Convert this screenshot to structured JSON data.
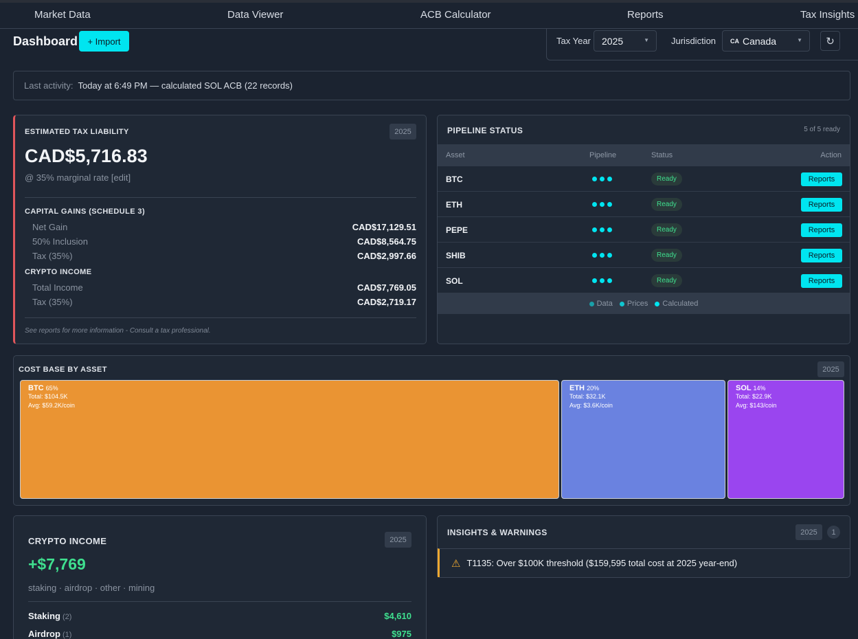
{
  "nav": [
    "Market Data",
    "Data Viewer",
    "ACB Calculator",
    "Reports",
    "Tax Insights"
  ],
  "header": {
    "title": "Dashboard",
    "import_label": "+ Import",
    "tax_year_label": "Tax Year",
    "tax_year_value": "2025",
    "jurisdiction_label": "Jurisdiction",
    "jurisdiction_flag": "CA",
    "jurisdiction_value": "Canada",
    "refresh_icon": "refresh-icon"
  },
  "activity": {
    "label": "Last activity:",
    "text": "Today at 6:49 PM — calculated SOL ACB (22 records)"
  },
  "tax": {
    "title": "Estimated Tax Liability",
    "year": "2025",
    "amount": "CAD$5,716.83",
    "rate_note": "@ 35% marginal rate [edit]",
    "capital_title": "Capital Gains (Schedule 3)",
    "capital_rows": [
      {
        "label": "Net Gain",
        "value": "CAD$17,129.51"
      },
      {
        "label": "50% Inclusion",
        "value": "CAD$8,564.75"
      },
      {
        "label": "Tax (35%)",
        "value": "CAD$2,997.66"
      }
    ],
    "income_title": "Crypto Income",
    "income_rows": [
      {
        "label": "Total Income",
        "value": "CAD$7,769.05"
      },
      {
        "label": "Tax (35%)",
        "value": "CAD$2,719.17"
      }
    ],
    "footnote": "See reports for more information - Consult a tax professional.",
    "accent": "#e0565b"
  },
  "pipeline": {
    "title": "Pipeline Status",
    "count": "5 of 5 ready",
    "columns": [
      "Asset",
      "Pipeline",
      "Status",
      "Action"
    ],
    "rows": [
      {
        "asset": "BTC",
        "status": "Ready",
        "action": "Reports"
      },
      {
        "asset": "ETH",
        "status": "Ready",
        "action": "Reports"
      },
      {
        "asset": "PEPE",
        "status": "Ready",
        "action": "Reports"
      },
      {
        "asset": "SHIB",
        "status": "Ready",
        "action": "Reports"
      },
      {
        "asset": "SOL",
        "status": "Ready",
        "action": "Reports"
      }
    ],
    "legend": [
      {
        "label": "Data",
        "color": "#1a9fa8"
      },
      {
        "label": "Prices",
        "color": "#10c6d0"
      },
      {
        "label": "Calculated",
        "color": "#00e5f0"
      }
    ]
  },
  "cost_base": {
    "title": "Cost Base by Asset",
    "year": "2025",
    "assets": [
      {
        "name": "BTC",
        "pct": "65%",
        "total": "Total: $104.5K",
        "avg": "Avg: $59.2K/coin",
        "color": "#ea9433"
      },
      {
        "name": "ETH",
        "pct": "20%",
        "total": "Total: $32.1K",
        "avg": "Avg: $3.6K/coin",
        "color": "#6a82e0"
      },
      {
        "name": "SOL",
        "pct": "14%",
        "total": "Total: $22.9K",
        "avg": "Avg: $143/coin",
        "color": "#9a45ef"
      }
    ]
  },
  "income": {
    "title": "Crypto Income",
    "year": "2025",
    "amount": "+$7,769",
    "subtitle": "staking · airdrop · other · mining",
    "rows": [
      {
        "label": "Staking",
        "count": "(2)",
        "value": "$4,610"
      },
      {
        "label": "Airdrop",
        "count": "(1)",
        "value": "$975"
      }
    ]
  },
  "insights": {
    "title": "Insights & Warnings",
    "year": "2025",
    "count": "1",
    "warning": "T1135: Over $100K threshold ($159,595 total cost at 2025 year-end)",
    "warning_color": "#f0a830"
  }
}
